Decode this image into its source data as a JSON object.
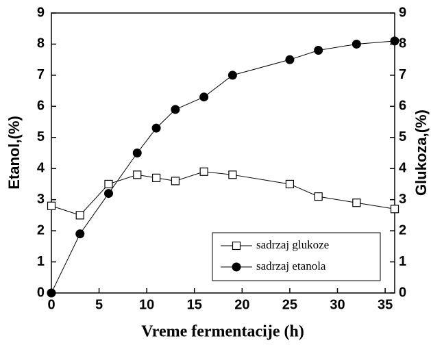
{
  "chart_data": {
    "type": "line",
    "xlabel": "Vreme fermentacije (h)",
    "ylabel": "Etanol,(%)",
    "y2label": "Glukoza,(%)",
    "x": [
      0,
      3,
      6,
      9,
      11,
      13,
      16,
      19,
      25,
      28,
      32,
      36
    ],
    "series": [
      {
        "name": "sadrzaj glukoze",
        "color": "#000000",
        "marker": "open-square",
        "axis": "y2",
        "values": [
          2.8,
          2.5,
          3.5,
          3.8,
          3.7,
          3.6,
          3.9,
          3.8,
          3.5,
          3.1,
          2.9,
          2.7
        ]
      },
      {
        "name": "sadrzaj etanola",
        "color": "#000000",
        "marker": "filled-circle",
        "values": [
          0,
          1.9,
          3.2,
          4.5,
          5.3,
          5.9,
          6.3,
          7.0,
          7.5,
          7.8,
          8.0,
          8.1
        ]
      }
    ],
    "xlim": [
      0,
      36
    ],
    "xticks": [
      0,
      5,
      10,
      15,
      20,
      25,
      30,
      35
    ],
    "ylim": [
      0,
      9
    ],
    "yticks": [
      0,
      1,
      2,
      3,
      4,
      5,
      6,
      7,
      8,
      9
    ],
    "y2lim": [
      0,
      9
    ],
    "y2ticks": [
      0,
      1,
      2,
      3,
      4,
      5,
      6,
      7,
      8,
      9
    ],
    "legend": "lower right",
    "grid": false
  }
}
